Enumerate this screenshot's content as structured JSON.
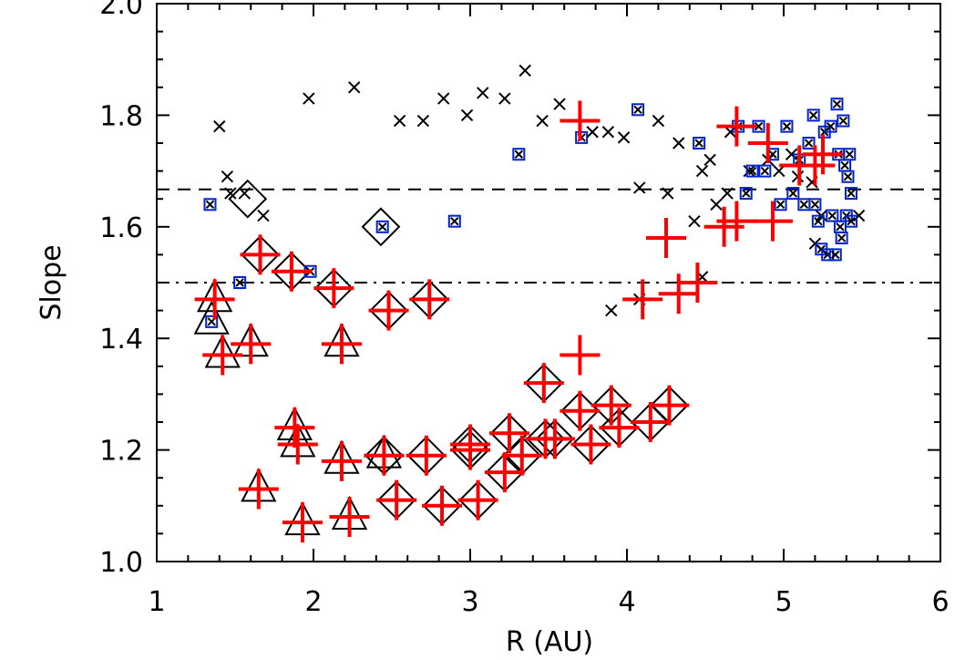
{
  "chart_data": {
    "type": "scatter",
    "title": "",
    "xlabel": "R (AU)",
    "ylabel": "Slope",
    "xlim": [
      1,
      6
    ],
    "ylim": [
      1.0,
      2.0
    ],
    "xticks": [
      "1",
      "2",
      "3",
      "4",
      "5",
      "6"
    ],
    "yticks": [
      "1.0",
      "1.2",
      "1.4",
      "1.6",
      "1.8",
      "2.0"
    ],
    "grid": false,
    "reference_lines": [
      {
        "y": 1.667,
        "style": "dashed"
      },
      {
        "y": 1.5,
        "style": "dash-dot"
      }
    ],
    "series": [
      {
        "marker": "x",
        "color": "#000000",
        "points": [
          [
            1.4,
            1.78
          ],
          [
            1.45,
            1.69
          ],
          [
            1.47,
            1.66
          ],
          [
            1.56,
            1.66
          ],
          [
            1.68,
            1.62
          ],
          [
            1.97,
            1.83
          ],
          [
            2.26,
            1.85
          ],
          [
            2.55,
            1.79
          ],
          [
            2.7,
            1.79
          ],
          [
            2.83,
            1.83
          ],
          [
            2.98,
            1.8
          ],
          [
            3.08,
            1.84
          ],
          [
            3.22,
            1.83
          ],
          [
            3.35,
            1.88
          ],
          [
            3.46,
            1.79
          ],
          [
            3.57,
            1.82
          ],
          [
            3.78,
            1.77
          ],
          [
            3.88,
            1.77
          ],
          [
            3.98,
            1.76
          ],
          [
            4.08,
            1.67
          ],
          [
            4.2,
            1.79
          ],
          [
            4.26,
            1.66
          ],
          [
            4.33,
            1.75
          ],
          [
            4.43,
            1.61
          ],
          [
            4.48,
            1.7
          ],
          [
            4.53,
            1.72
          ],
          [
            4.57,
            1.64
          ],
          [
            4.64,
            1.66
          ],
          [
            4.66,
            1.77
          ],
          [
            4.78,
            1.7
          ],
          [
            4.9,
            1.72
          ],
          [
            4.97,
            1.7
          ],
          [
            5.05,
            1.73
          ],
          [
            5.09,
            1.69
          ],
          [
            5.18,
            1.68
          ],
          [
            5.2,
            1.57
          ],
          [
            5.24,
            1.62
          ],
          [
            3.9,
            1.45
          ],
          [
            4.08,
            1.47
          ],
          [
            4.48,
            1.51
          ],
          [
            5.48,
            1.62
          ]
        ]
      },
      {
        "marker": "boxed-x",
        "color": "#0022cc",
        "points": [
          [
            1.34,
            1.64
          ],
          [
            1.35,
            1.43
          ],
          [
            1.53,
            1.5
          ],
          [
            1.98,
            1.52
          ],
          [
            2.44,
            1.6
          ],
          [
            2.9,
            1.61
          ],
          [
            3.31,
            1.73
          ],
          [
            3.71,
            1.76
          ],
          [
            4.07,
            1.81
          ],
          [
            4.46,
            1.75
          ],
          [
            4.71,
            1.78
          ],
          [
            4.76,
            1.66
          ],
          [
            4.8,
            1.7
          ],
          [
            4.84,
            1.78
          ],
          [
            4.88,
            1.7
          ],
          [
            4.93,
            1.73
          ],
          [
            4.98,
            1.64
          ],
          [
            5.02,
            1.78
          ],
          [
            5.06,
            1.66
          ],
          [
            5.1,
            1.72
          ],
          [
            5.13,
            1.64
          ],
          [
            5.16,
            1.75
          ],
          [
            5.19,
            1.8
          ],
          [
            5.2,
            1.64
          ],
          [
            5.22,
            1.61
          ],
          [
            5.24,
            1.56
          ],
          [
            5.26,
            1.77
          ],
          [
            5.28,
            1.55
          ],
          [
            5.3,
            1.78
          ],
          [
            5.31,
            1.62
          ],
          [
            5.33,
            1.55
          ],
          [
            5.34,
            1.82
          ],
          [
            5.35,
            1.73
          ],
          [
            5.36,
            1.6
          ],
          [
            5.37,
            1.58
          ],
          [
            5.38,
            1.79
          ],
          [
            5.39,
            1.71
          ],
          [
            5.4,
            1.62
          ],
          [
            5.41,
            1.69
          ],
          [
            5.42,
            1.73
          ],
          [
            5.43,
            1.66
          ],
          [
            5.43,
            1.61
          ]
        ]
      },
      {
        "marker": "plus",
        "color": "#ff0000",
        "points": [
          [
            1.37,
            1.47
          ],
          [
            1.42,
            1.37
          ],
          [
            1.6,
            1.39
          ],
          [
            1.66,
            1.55
          ],
          [
            1.65,
            1.13
          ],
          [
            1.86,
            1.52
          ],
          [
            1.88,
            1.24
          ],
          [
            1.9,
            1.21
          ],
          [
            1.93,
            1.07
          ],
          [
            2.13,
            1.49
          ],
          [
            2.18,
            1.39
          ],
          [
            2.18,
            1.18
          ],
          [
            2.23,
            1.08
          ],
          [
            2.45,
            1.19
          ],
          [
            2.48,
            1.45
          ],
          [
            2.53,
            1.11
          ],
          [
            2.74,
            1.47
          ],
          [
            2.72,
            1.19
          ],
          [
            2.82,
            1.1
          ],
          [
            3.0,
            1.2
          ],
          [
            3.0,
            1.21
          ],
          [
            3.05,
            1.11
          ],
          [
            3.22,
            1.16
          ],
          [
            3.25,
            1.23
          ],
          [
            3.33,
            1.19
          ],
          [
            3.47,
            1.32
          ],
          [
            3.48,
            1.22
          ],
          [
            3.54,
            1.22
          ],
          [
            3.7,
            1.37
          ],
          [
            3.7,
            1.27
          ],
          [
            3.7,
            1.79
          ],
          [
            3.77,
            1.21
          ],
          [
            3.9,
            1.28
          ],
          [
            3.95,
            1.24
          ],
          [
            4.1,
            1.47
          ],
          [
            4.15,
            1.25
          ],
          [
            4.25,
            1.58
          ],
          [
            4.27,
            1.28
          ],
          [
            4.33,
            1.48
          ],
          [
            4.45,
            1.5
          ],
          [
            4.62,
            1.6
          ],
          [
            4.7,
            1.61
          ],
          [
            4.7,
            1.78
          ],
          [
            4.9,
            1.75
          ],
          [
            4.93,
            1.61
          ],
          [
            5.1,
            1.71
          ],
          [
            5.2,
            1.71
          ],
          [
            5.25,
            1.73
          ]
        ]
      },
      {
        "marker": "diamond",
        "color": "#000000",
        "points": [
          [
            1.58,
            1.65
          ],
          [
            2.43,
            1.6
          ],
          [
            1.66,
            1.55
          ],
          [
            1.86,
            1.52
          ],
          [
            2.13,
            1.49
          ],
          [
            2.48,
            1.45
          ],
          [
            2.74,
            1.47
          ],
          [
            2.45,
            1.19
          ],
          [
            2.53,
            1.11
          ],
          [
            2.72,
            1.19
          ],
          [
            2.82,
            1.1
          ],
          [
            3.0,
            1.21
          ],
          [
            3.0,
            1.2
          ],
          [
            3.05,
            1.11
          ],
          [
            3.22,
            1.16
          ],
          [
            3.25,
            1.23
          ],
          [
            3.33,
            1.19
          ],
          [
            3.47,
            1.32
          ],
          [
            3.48,
            1.22
          ],
          [
            3.54,
            1.22
          ],
          [
            3.7,
            1.27
          ],
          [
            3.77,
            1.21
          ],
          [
            3.9,
            1.28
          ],
          [
            3.95,
            1.24
          ],
          [
            4.15,
            1.25
          ],
          [
            4.27,
            1.28
          ]
        ]
      },
      {
        "marker": "triangle",
        "color": "#000000",
        "points": [
          [
            1.37,
            1.47
          ],
          [
            1.35,
            1.43
          ],
          [
            1.42,
            1.37
          ],
          [
            1.6,
            1.39
          ],
          [
            1.65,
            1.13
          ],
          [
            1.88,
            1.24
          ],
          [
            1.9,
            1.21
          ],
          [
            1.93,
            1.07
          ],
          [
            2.18,
            1.39
          ],
          [
            2.18,
            1.18
          ],
          [
            2.23,
            1.08
          ],
          [
            2.45,
            1.19
          ]
        ]
      }
    ]
  }
}
